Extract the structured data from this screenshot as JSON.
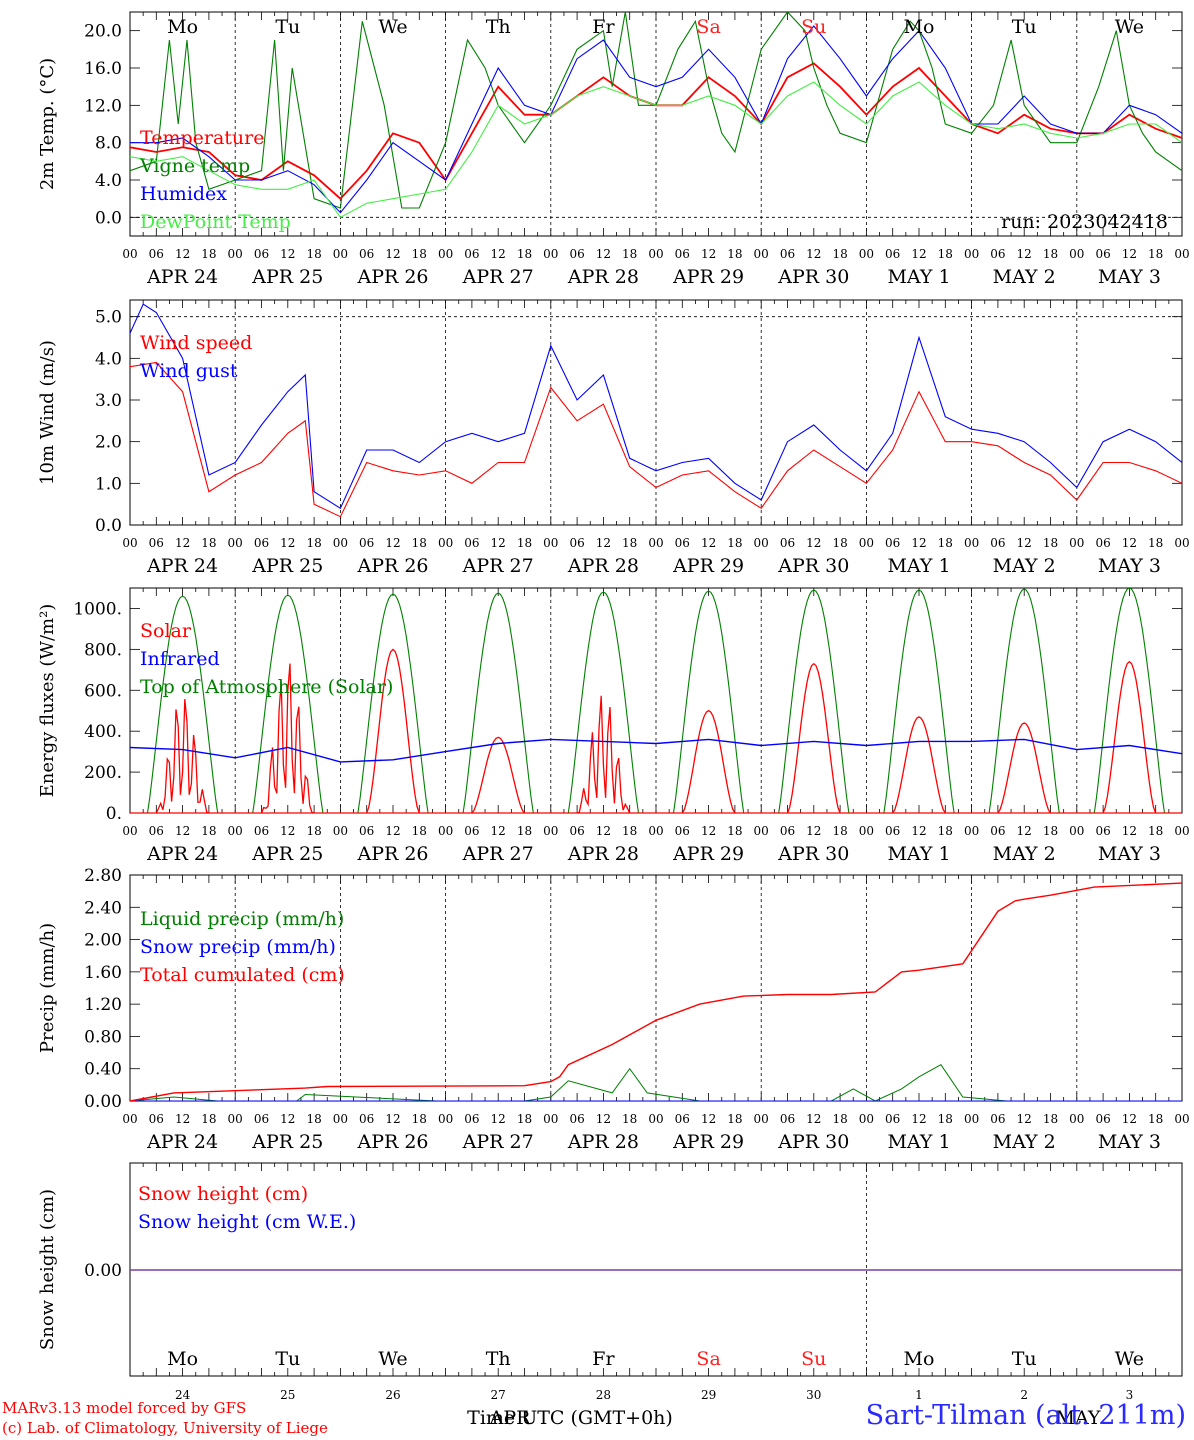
{
  "footer": {
    "credit1": "MARv3.13 model forced by GFS",
    "credit2": "(c) Lab. of Climatology, University of Liege",
    "xtitle": "Time UTC (GMT+0h)",
    "month_overlay_apr": "APR",
    "month_overlay_may": "MAY",
    "station": "Sart-Tilman (alt. 211m)"
  },
  "run_label": "run: 2023042418",
  "hour_ticks": [
    "00",
    "06",
    "12",
    "18"
  ],
  "final_hour": "00",
  "date_labels": [
    "APR 24",
    "APR 25",
    "APR 26",
    "APR 27",
    "APR 28",
    "APR 29",
    "APR 30",
    "MAY  1",
    "MAY  2",
    "MAY  3"
  ],
  "weekdays": [
    "Mo",
    "Tu",
    "We",
    "Th",
    "Fr",
    "Sa",
    "Su",
    "Mo",
    "Tu",
    "We"
  ],
  "bottom_day_numbers": [
    "24",
    "25",
    "26",
    "27",
    "28",
    "29",
    "30",
    "1",
    "2",
    "3"
  ],
  "colors": {
    "red": "#ff0000",
    "green": "#008000",
    "blue": "#0000ff",
    "lightgreen": "#44ee44",
    "purple": "#7b3fa0",
    "weekend": "#ff2020"
  },
  "chart_data": [
    {
      "type": "line",
      "ylabel": "2m Temp. (°C)",
      "ylim": [
        -2,
        22
      ],
      "yticks": [
        "0.0",
        "4.0",
        "8.0",
        "12.0",
        "16.0",
        "20.0"
      ],
      "x_unit": "hours from 2023-04-24 00 UTC",
      "series": [
        {
          "name": "Temperature",
          "color": "red",
          "x": [
            0,
            6,
            12,
            18,
            24,
            30,
            36,
            42,
            48,
            54,
            60,
            66,
            72,
            78,
            84,
            90,
            96,
            102,
            108,
            114,
            120,
            126,
            132,
            138,
            144,
            150,
            156,
            162,
            168,
            174,
            180,
            186,
            192,
            198,
            204,
            210,
            216,
            222,
            228,
            234,
            240
          ],
          "y": [
            7.5,
            7,
            7.5,
            7,
            4.5,
            4,
            6,
            4.5,
            2,
            5,
            9,
            8,
            4,
            9,
            14,
            11,
            11,
            13,
            15,
            13,
            12,
            12,
            15,
            13,
            10,
            15,
            16.5,
            14,
            11,
            14,
            16,
            13,
            10,
            9,
            11,
            9.5,
            9,
            9,
            11,
            9.5,
            8.5
          ]
        },
        {
          "name": "Vigne temp",
          "color": "green",
          "x": [
            0,
            6,
            9,
            11,
            13,
            15,
            18,
            24,
            30,
            33,
            35,
            37,
            42,
            48,
            53,
            58,
            62,
            66,
            72,
            77,
            81,
            84,
            87,
            90,
            96,
            102,
            108,
            110,
            113,
            116,
            120,
            125,
            129,
            132,
            135,
            138,
            144,
            150,
            154,
            156,
            159,
            162,
            168,
            174,
            178,
            180,
            183,
            186,
            192,
            197,
            201,
            204,
            207,
            210,
            216,
            221,
            225,
            228,
            231,
            234,
            240
          ],
          "y": [
            5,
            6,
            19,
            10,
            19,
            8,
            3,
            4,
            5,
            19,
            5,
            16,
            2,
            1,
            21,
            12,
            1,
            1,
            8,
            19,
            16,
            12,
            10,
            8,
            12,
            18,
            20,
            14,
            22,
            12,
            12,
            18,
            21,
            14,
            9,
            7,
            18,
            22,
            20,
            16,
            12,
            9,
            8,
            18,
            21,
            20,
            16,
            10,
            9,
            12,
            19,
            12,
            10,
            8,
            8,
            14,
            20,
            12,
            9,
            7,
            5
          ]
        },
        {
          "name": "Humidex",
          "color": "blue",
          "x": [
            0,
            6,
            12,
            18,
            24,
            30,
            36,
            42,
            48,
            54,
            60,
            66,
            72,
            78,
            84,
            90,
            96,
            102,
            108,
            114,
            120,
            126,
            132,
            138,
            144,
            150,
            156,
            162,
            168,
            174,
            180,
            186,
            192,
            198,
            204,
            210,
            216,
            222,
            228,
            234,
            240
          ],
          "y": [
            8,
            8,
            8.5,
            6.5,
            4,
            4,
            5,
            3.5,
            0.5,
            4,
            8,
            6,
            4,
            10,
            16,
            12,
            11,
            17,
            19,
            15,
            14,
            15,
            18,
            15,
            10,
            17,
            20.5,
            17,
            13,
            17,
            20,
            16,
            10,
            10,
            13,
            10,
            9,
            9,
            12,
            11,
            9
          ]
        },
        {
          "name": "DewPoint Temp",
          "color": "lightgreen",
          "x": [
            0,
            6,
            12,
            18,
            24,
            30,
            36,
            42,
            48,
            54,
            60,
            66,
            72,
            78,
            84,
            90,
            96,
            102,
            108,
            114,
            120,
            126,
            132,
            138,
            144,
            150,
            156,
            162,
            168,
            174,
            180,
            186,
            192,
            198,
            204,
            210,
            216,
            222,
            228,
            234,
            240
          ],
          "y": [
            6.5,
            6,
            6.5,
            5,
            3.5,
            3,
            3,
            4,
            0,
            1.5,
            2,
            2.5,
            3,
            7,
            12,
            10,
            11,
            13,
            14,
            13,
            12,
            12,
            13,
            12,
            10,
            13,
            14.5,
            12,
            10,
            13,
            14.5,
            12,
            10,
            9.5,
            10,
            9,
            8.5,
            9,
            10,
            10,
            8
          ]
        }
      ]
    },
    {
      "type": "line",
      "ylabel": "10m Wind (m/s)",
      "ylim": [
        0,
        5.4
      ],
      "yticks": [
        "0.0",
        "1.0",
        "2.0",
        "3.0",
        "4.0",
        "5.0"
      ],
      "x_unit": "hours from 2023-04-24 00 UTC",
      "series": [
        {
          "name": "Wind speed",
          "color": "red",
          "x": [
            0,
            6,
            12,
            18,
            24,
            30,
            36,
            40,
            42,
            48,
            54,
            60,
            66,
            72,
            78,
            84,
            90,
            96,
            102,
            108,
            114,
            120,
            126,
            132,
            138,
            144,
            150,
            156,
            162,
            168,
            174,
            180,
            186,
            192,
            198,
            204,
            210,
            216,
            222,
            228,
            234,
            240
          ],
          "y": [
            3.8,
            3.9,
            3.2,
            0.8,
            1.2,
            1.5,
            2.2,
            2.5,
            0.5,
            0.2,
            1.5,
            1.3,
            1.2,
            1.3,
            1.0,
            1.5,
            1.5,
            3.3,
            2.5,
            2.9,
            1.4,
            0.9,
            1.2,
            1.3,
            0.8,
            0.4,
            1.3,
            1.8,
            1.4,
            1.0,
            1.8,
            3.2,
            2.0,
            2.0,
            1.9,
            1.5,
            1.2,
            0.6,
            1.5,
            1.5,
            1.3,
            1.0
          ]
        },
        {
          "name": "Wind gust",
          "color": "blue",
          "x": [
            0,
            3,
            6,
            12,
            18,
            24,
            30,
            36,
            40,
            42,
            48,
            54,
            60,
            66,
            72,
            78,
            84,
            90,
            96,
            102,
            108,
            114,
            120,
            126,
            132,
            138,
            144,
            150,
            156,
            162,
            168,
            174,
            180,
            186,
            192,
            198,
            204,
            210,
            216,
            222,
            228,
            234,
            240
          ],
          "y": [
            4.6,
            5.3,
            5.1,
            4.0,
            1.2,
            1.5,
            2.4,
            3.2,
            3.6,
            0.8,
            0.4,
            1.8,
            1.8,
            1.5,
            2.0,
            2.2,
            2.0,
            2.2,
            4.3,
            3.0,
            3.6,
            1.6,
            1.3,
            1.5,
            1.6,
            1.0,
            0.6,
            2.0,
            2.4,
            1.8,
            1.3,
            2.2,
            4.5,
            2.6,
            2.3,
            2.2,
            2.0,
            1.5,
            0.9,
            2.0,
            2.3,
            2.0,
            1.5
          ]
        }
      ]
    },
    {
      "type": "line",
      "ylabel": "Energy fluxes (W/m²)",
      "ylim": [
        0,
        1100
      ],
      "yticks": [
        "0.",
        "200.",
        "400.",
        "600.",
        "800.",
        "1000."
      ],
      "x_unit": "hours from 2023-04-24 00 UTC",
      "toa_peaks": [
        1060,
        1065,
        1070,
        1075,
        1080,
        1085,
        1090,
        1090,
        1095,
        1100
      ],
      "solar_peaks": [
        600,
        780,
        800,
        370,
        600,
        500,
        730,
        470,
        440,
        740
      ],
      "series": [
        {
          "name": "Solar",
          "color": "red",
          "note": "daily curve, peaks listed in solar_peaks"
        },
        {
          "name": "Infrared",
          "color": "blue",
          "x": [
            0,
            12,
            24,
            36,
            48,
            60,
            72,
            84,
            96,
            108,
            120,
            132,
            144,
            156,
            168,
            180,
            192,
            204,
            216,
            228,
            240
          ],
          "y": [
            320,
            310,
            270,
            320,
            250,
            260,
            300,
            340,
            360,
            350,
            340,
            360,
            330,
            350,
            330,
            350,
            350,
            360,
            310,
            330,
            290
          ]
        },
        {
          "name": "Top of Atmosphere (Solar)",
          "color": "green",
          "note": "daily arch 05-19 UTC, peaks listed in toa_peaks"
        }
      ]
    },
    {
      "type": "line",
      "ylabel": "Precip (mm/h)",
      "ylim": [
        0,
        2.8
      ],
      "yticks": [
        "0.00",
        "0.40",
        "0.80",
        "1.20",
        "1.60",
        "2.00",
        "2.40",
        "2.80"
      ],
      "x_unit": "hours from 2023-04-24 00 UTC",
      "series": [
        {
          "name": "Liquid precip (mm/h)",
          "color": "green",
          "x": [
            0,
            10,
            20,
            38,
            40,
            70,
            90,
            96,
            100,
            110,
            114,
            118,
            130,
            160,
            165,
            170,
            176,
            180,
            185,
            190,
            200,
            240
          ],
          "y": [
            0,
            0.05,
            0,
            0,
            0.08,
            0,
            0,
            0.05,
            0.25,
            0.1,
            0.4,
            0.1,
            0,
            0,
            0.15,
            0,
            0.15,
            0.3,
            0.45,
            0.05,
            0,
            0
          ]
        },
        {
          "name": "Snow precip (mm/h)",
          "color": "blue",
          "x": [
            0,
            240
          ],
          "y": [
            0,
            0
          ]
        },
        {
          "name": "Total cumulated (cm)",
          "color": "red",
          "x": [
            0,
            5,
            10,
            20,
            30,
            40,
            45,
            90,
            96,
            98,
            100,
            110,
            120,
            130,
            140,
            150,
            160,
            170,
            176,
            180,
            190,
            198,
            202,
            204,
            210,
            220,
            240
          ],
          "y": [
            0,
            0.05,
            0.1,
            0.12,
            0.14,
            0.16,
            0.18,
            0.19,
            0.24,
            0.3,
            0.45,
            0.7,
            1.0,
            1.2,
            1.3,
            1.32,
            1.32,
            1.35,
            1.6,
            1.62,
            1.7,
            2.35,
            2.48,
            2.5,
            2.55,
            2.65,
            2.7
          ]
        }
      ]
    },
    {
      "type": "line",
      "ylabel": "Snow height (cm)",
      "yticks": [
        "0.00"
      ],
      "series": [
        {
          "name": "Snow height (cm)",
          "color": "red",
          "x": [
            0,
            240
          ],
          "y": [
            0,
            0
          ]
        },
        {
          "name": "Snow height (cm W.E.)",
          "color": "blue",
          "x": [
            0,
            240
          ],
          "y": [
            0,
            0
          ]
        }
      ]
    }
  ]
}
